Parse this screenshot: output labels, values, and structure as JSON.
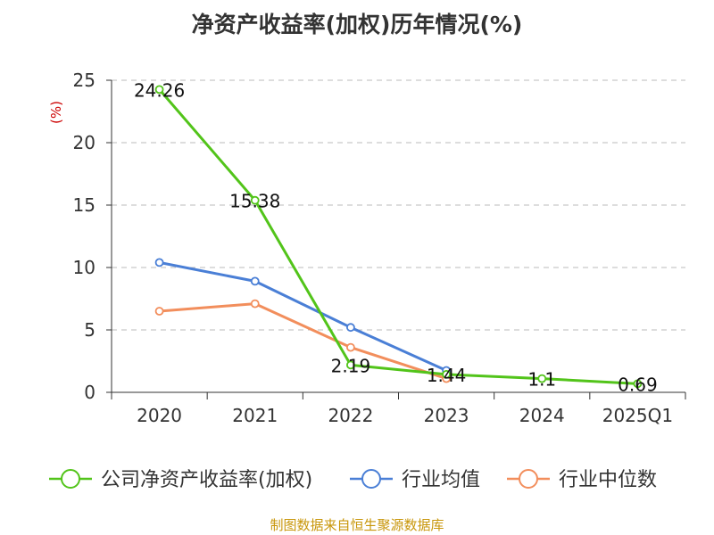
{
  "title": "净资产收益率(加权)历年情况(%)",
  "source": "制图数据来自恒生聚源数据库",
  "colors": {
    "source_text": "#c8960a",
    "unit_label": "#cc0000",
    "axis": "#333333",
    "grid": "#bbbbbb"
  },
  "chart_data": {
    "type": "line",
    "title": "净资产收益率(加权)历年情况(%)",
    "ylabel": "(%)",
    "xlabel": "",
    "categories": [
      "2020",
      "2021",
      "2022",
      "2023",
      "2024",
      "2025Q1"
    ],
    "ylim": [
      0,
      25
    ],
    "yticks": [
      0,
      5,
      10,
      15,
      20,
      25
    ],
    "grid": "horizontal dashed",
    "legend_position": "bottom",
    "series": [
      {
        "name": "公司净资产收益率(加权)",
        "color": "#52c41a",
        "values": [
          24.26,
          15.38,
          2.19,
          1.44,
          1.1,
          0.69
        ],
        "labels": [
          "24.26",
          "15.38",
          "2.19",
          "1.44",
          "1.1",
          "0.69"
        ]
      },
      {
        "name": "行业均值",
        "color": "#4a7fd6",
        "values": [
          10.4,
          8.9,
          5.2,
          1.75,
          null,
          null
        ]
      },
      {
        "name": "行业中位数",
        "color": "#f28e5c",
        "values": [
          6.5,
          7.1,
          3.6,
          1.1,
          null,
          null
        ]
      }
    ]
  }
}
